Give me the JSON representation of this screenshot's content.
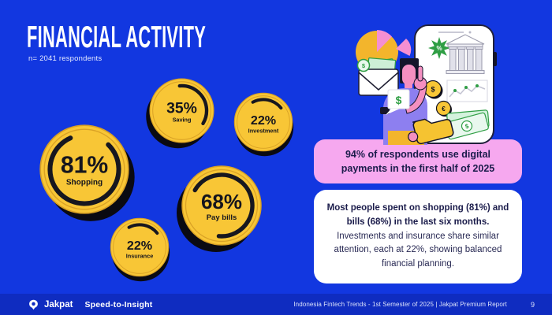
{
  "slide": {
    "title": "FINANCIAL ACTIVITY",
    "subtitle": "n= 2041 respondents"
  },
  "chart_data": {
    "type": "bar",
    "title": "Financial Activity",
    "note": "n= 2041 respondents",
    "categories": [
      "Shopping",
      "Saving",
      "Investment",
      "Pay bills",
      "Insurance"
    ],
    "values": [
      81,
      35,
      22,
      68,
      22
    ],
    "unit": "%",
    "ylim": [
      0,
      100
    ],
    "legend": "none",
    "style": "yellow coin badges with black progress ring arcs on blue background"
  },
  "coins": [
    {
      "id": "shopping",
      "percent_label": "81%",
      "label": "Shopping",
      "value": 81
    },
    {
      "id": "saving",
      "percent_label": "35%",
      "label": "Saving",
      "value": 35
    },
    {
      "id": "investment",
      "percent_label": "22%",
      "label": "Investment",
      "value": 22
    },
    {
      "id": "paybills",
      "percent_label": "68%",
      "label": "Pay bills",
      "value": 68
    },
    {
      "id": "insurance",
      "percent_label": "22%",
      "label": "Insurance",
      "value": 22
    }
  ],
  "highlight_box": {
    "text": "94% of respondents use digital payments in the first half of 2025"
  },
  "insight_box": {
    "bold_text": "Most people spent on shopping (81%) and bills (68%) in the last six months.",
    "body_text": "Investments and insurance share similar attention, each at 22%, showing balanced financial planning."
  },
  "illustration": {
    "name": "person-pointing-at-phone-finance-illustration",
    "symbols": {
      "percent": "%",
      "dollar": "$",
      "euro": "€"
    }
  },
  "footer": {
    "brand": "Jakpat",
    "tagline": "Speed-to-Insight",
    "report": "Indonesia Fintech Trends - 1st Semester of 2025 | Jakpat Premium Report",
    "page": "9"
  },
  "colors": {
    "background": "#1237e0",
    "footer_bar": "#0f2cc0",
    "coin": "#f8c636",
    "coin_rim": "#d9a125",
    "coin_shadow": "#0a0a12",
    "arc": "#17171f",
    "coin_text": "#15151d",
    "pink_box": "#f6a8ef",
    "card": "#ffffff",
    "text_dark": "#1b1c4b",
    "green": "#2f9e44",
    "purple": "#8d7ff0",
    "skin_pink": "#f48fc0",
    "yellow": "#f3b52c"
  }
}
